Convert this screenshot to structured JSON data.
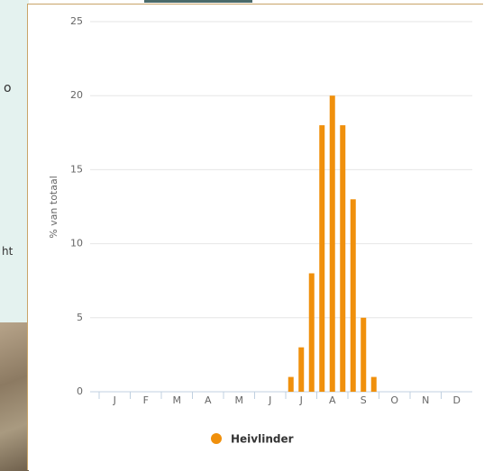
{
  "background": {
    "text_1": "o",
    "text_2": "ht"
  },
  "chart_data": {
    "type": "bar",
    "y_label": "% van totaal",
    "categories": [
      null,
      "J",
      null,
      null,
      "F",
      null,
      null,
      "M",
      null,
      null,
      "A",
      null,
      null,
      "M",
      null,
      null,
      "J",
      null,
      null,
      "J",
      null,
      null,
      "A",
      null,
      null,
      "S",
      null,
      null,
      "O",
      null,
      null,
      "N",
      null,
      null,
      "D",
      null
    ],
    "series": [
      {
        "name": "Heivlinder",
        "color": "#f0900c",
        "values": [
          0,
          0,
          0,
          0,
          0,
          0,
          0,
          0,
          0,
          0,
          0,
          0,
          0,
          0,
          0,
          0,
          0,
          0,
          1,
          3,
          8,
          18,
          20,
          18,
          13,
          5,
          1,
          0,
          0,
          0,
          0,
          0,
          0,
          0,
          0,
          0
        ]
      }
    ],
    "ylim": [
      0,
      25
    ],
    "yticks": [
      0,
      5,
      10,
      15,
      20,
      25
    ],
    "grid": true
  }
}
